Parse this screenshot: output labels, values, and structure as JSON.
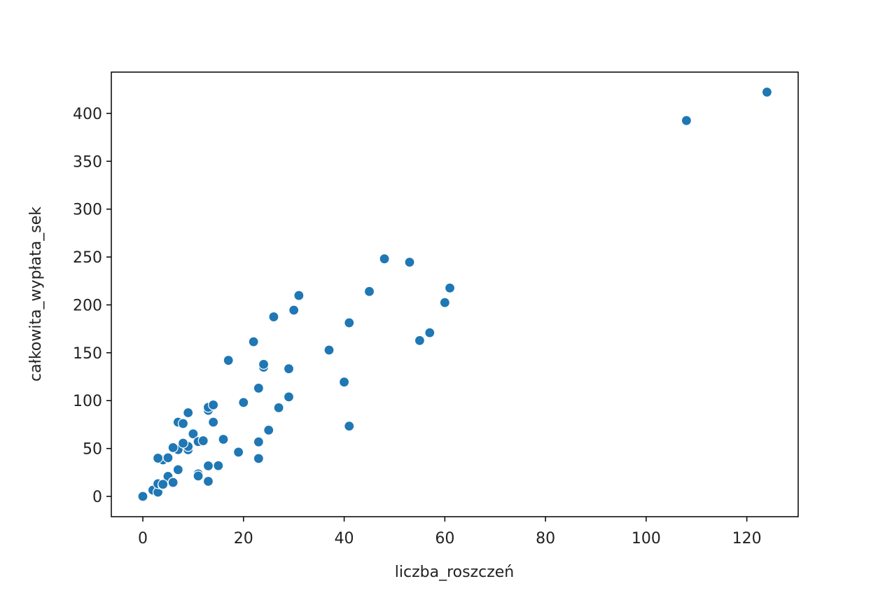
{
  "chart_data": {
    "type": "scatter",
    "x_label": "liczba_roszczeń",
    "y_label": "całkowita_wypłata_sek",
    "color": "#1f77b4",
    "x": [
      108,
      19,
      13,
      124,
      40,
      57,
      23,
      14,
      45,
      10,
      5,
      48,
      11,
      23,
      7,
      2,
      24,
      6,
      3,
      23,
      6,
      9,
      9,
      3,
      29,
      7,
      4,
      20,
      7,
      4,
      0,
      25,
      6,
      5,
      22,
      11,
      61,
      12,
      4,
      16,
      13,
      60,
      41,
      37,
      55,
      41,
      11,
      27,
      8,
      3,
      17,
      13,
      13,
      15,
      8,
      29,
      30,
      24,
      9,
      31,
      14,
      53,
      26
    ],
    "y": [
      392.5,
      46.2,
      15.7,
      422.2,
      119.4,
      170.9,
      56.9,
      77.5,
      214,
      65.3,
      20.9,
      248.1,
      23.5,
      39.6,
      48.8,
      6.6,
      134.9,
      50.9,
      4.4,
      113,
      14.8,
      48.7,
      52.1,
      13.2,
      103.9,
      77.5,
      11.8,
      98.1,
      27.9,
      38.1,
      0,
      69.2,
      14.6,
      40.3,
      161.5,
      57.2,
      217.6,
      58.1,
      12.6,
      59.6,
      89.9,
      202.4,
      181.3,
      152.8,
      162.8,
      73.4,
      21.3,
      92.6,
      76.1,
      39.9,
      142.1,
      93,
      31.9,
      32.1,
      55.6,
      133.3,
      194.5,
      137.9,
      87.4,
      209.8,
      95.5,
      244.6,
      187.5
    ],
    "xlim": [
      -6.26,
      130.2
    ],
    "ylim": [
      -21.2,
      443.1
    ],
    "xticks": [
      0,
      20,
      40,
      60,
      80,
      100,
      120
    ],
    "yticks": [
      0,
      50,
      100,
      150,
      200,
      250,
      300,
      350,
      400
    ]
  }
}
